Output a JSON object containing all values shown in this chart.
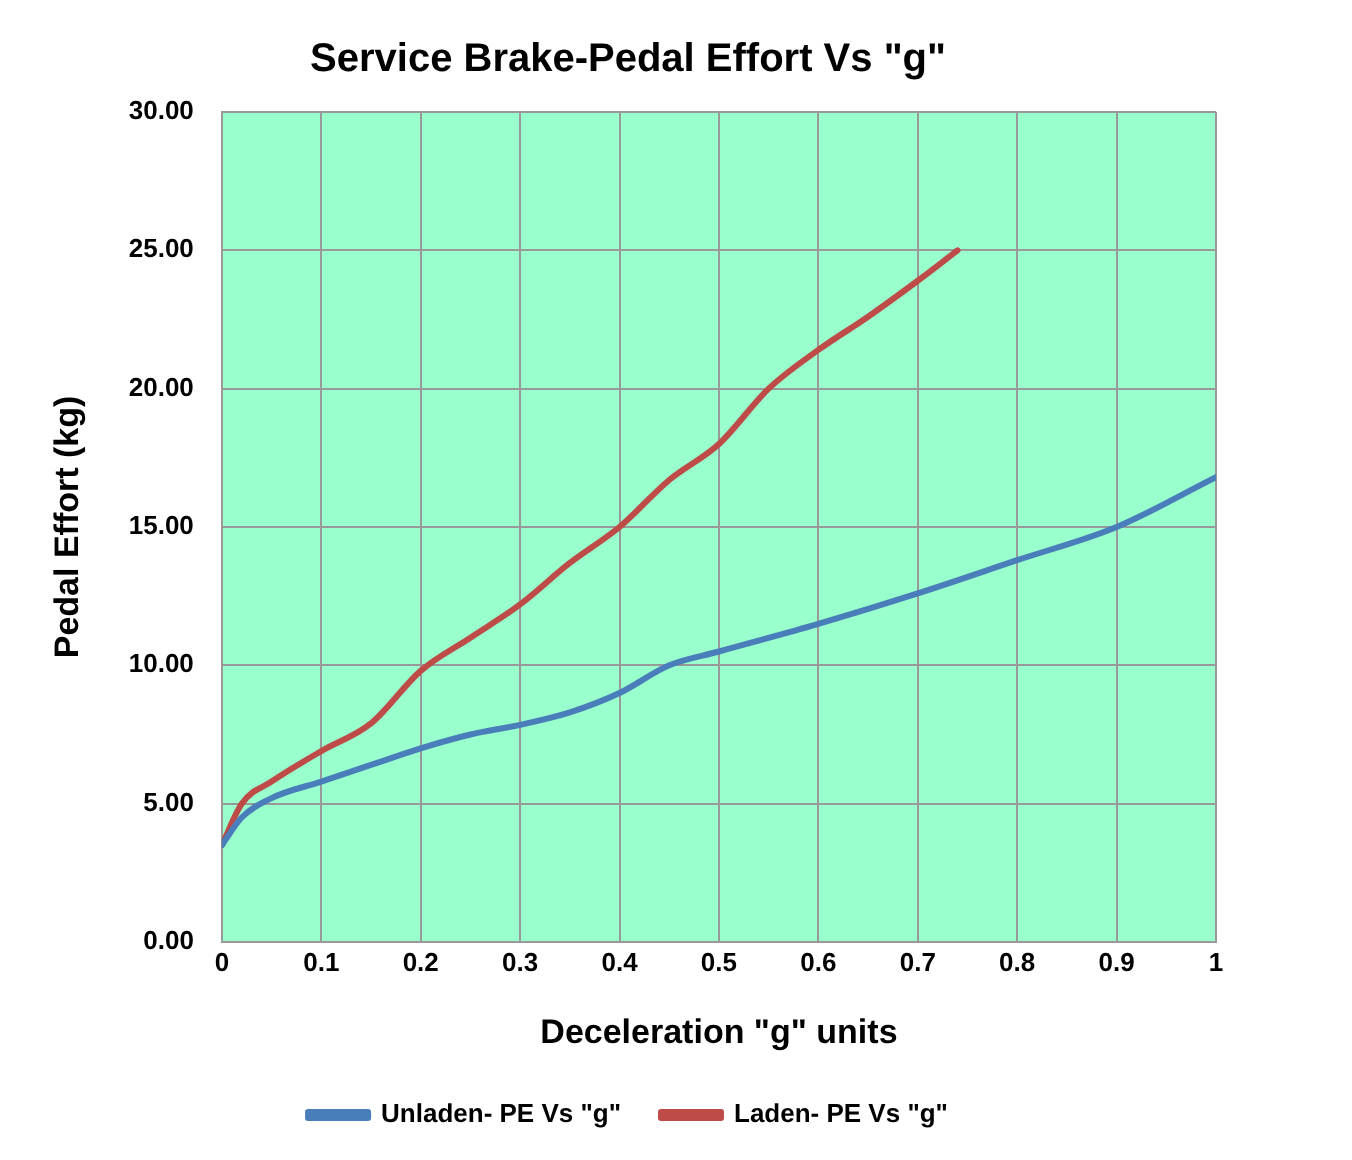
{
  "chart_data": {
    "type": "line",
    "title": "Service Brake-Pedal Effort Vs \"g\"",
    "xlabel": "Deceleration \"g\" units",
    "ylabel": "Pedal Effort (kg)",
    "series": [
      {
        "name": "Unladen- PE Vs \"g\"",
        "color": "#4a7ebb",
        "x": [
          0,
          0.02,
          0.05,
          0.1,
          0.15,
          0.2,
          0.25,
          0.3,
          0.35,
          0.4,
          0.45,
          0.5,
          0.6,
          0.7,
          0.8,
          0.9,
          1.0
        ],
        "values": [
          3.5,
          4.5,
          5.2,
          5.8,
          6.4,
          7.0,
          7.5,
          7.85,
          8.3,
          9.0,
          10.0,
          10.5,
          11.5,
          12.6,
          13.8,
          15.0,
          16.8
        ]
      },
      {
        "name": "Laden- PE Vs \"g\"",
        "color": "#be4b48",
        "x": [
          0,
          0.02,
          0.05,
          0.1,
          0.15,
          0.2,
          0.25,
          0.3,
          0.35,
          0.4,
          0.45,
          0.5,
          0.55,
          0.6,
          0.65,
          0.7,
          0.74
        ],
        "values": [
          3.5,
          5.0,
          5.8,
          6.9,
          7.9,
          9.8,
          11.0,
          12.2,
          13.7,
          15.0,
          16.7,
          18.0,
          20.0,
          21.4,
          22.6,
          23.9,
          25.0
        ]
      }
    ],
    "xlim": [
      0,
      1
    ],
    "xticks": [
      0,
      0.1,
      0.2,
      0.3,
      0.4,
      0.5,
      0.6,
      0.7,
      0.8,
      0.9,
      1
    ],
    "ylim": [
      0,
      30
    ],
    "yticks": [
      {
        "value": 0,
        "label": "0.00"
      },
      {
        "value": 5,
        "label": "5.00"
      },
      {
        "value": 10,
        "label": "10.00"
      },
      {
        "value": 15,
        "label": "15.00"
      },
      {
        "value": 20,
        "label": "20.00"
      },
      {
        "value": 25,
        "label": "25.00"
      },
      {
        "value": 30,
        "label": "30.00"
      }
    ],
    "grid": true,
    "legend": "bottom",
    "marker": "none",
    "line_style": "solid"
  }
}
